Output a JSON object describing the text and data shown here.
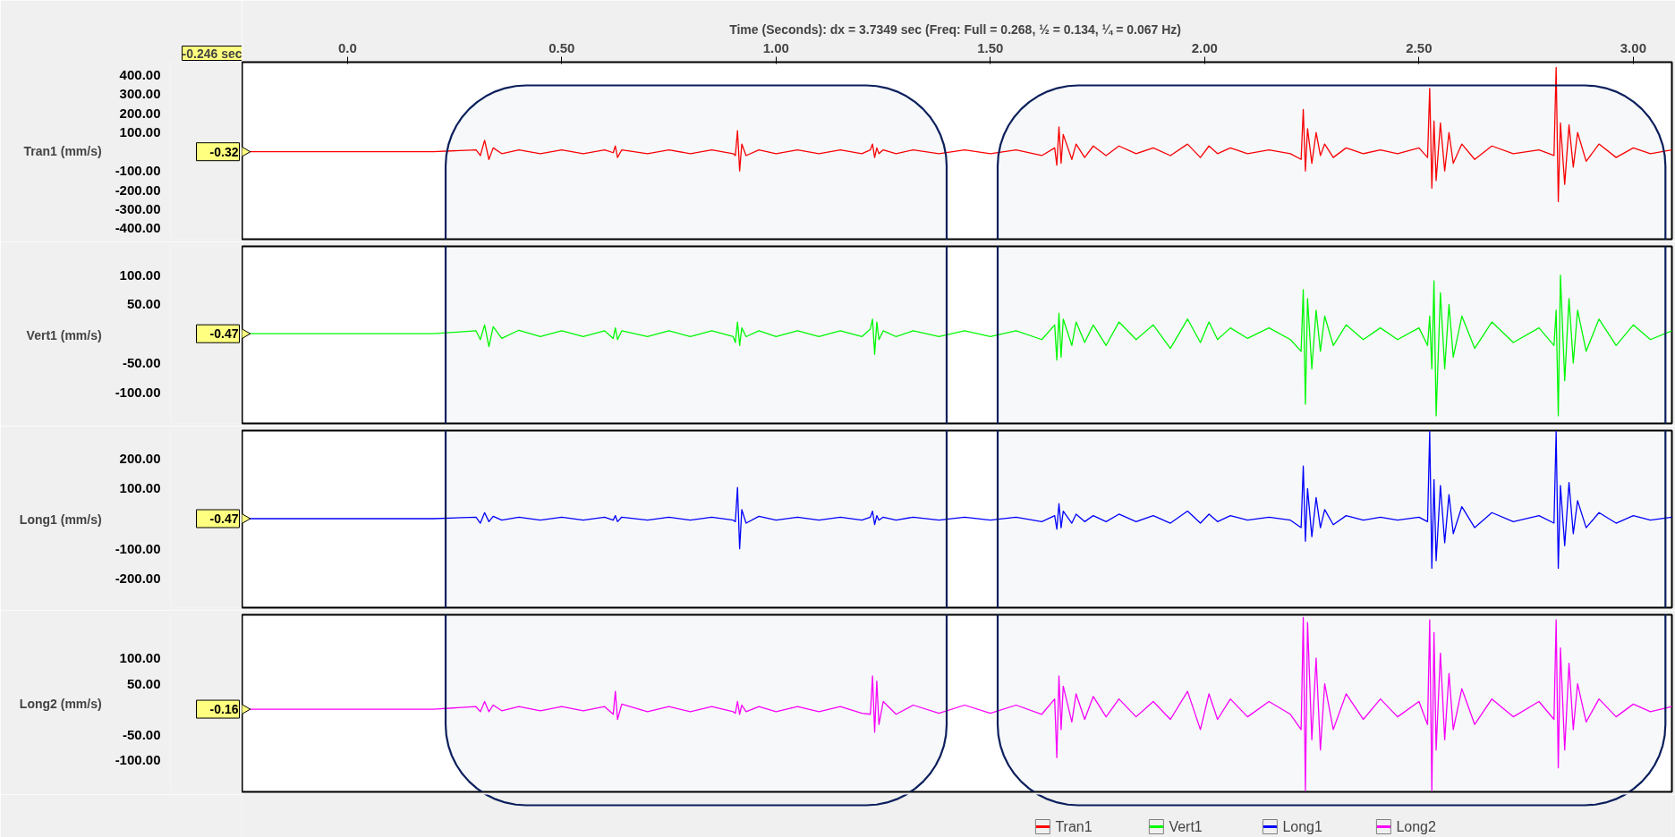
{
  "chart_data": [
    {
      "type": "line",
      "xlabel": "Time (Seconds): dx = 3.7349 sec (Freq:  Full = 0.268, ½ = 0.134, ¼ = 0.067 Hz)",
      "ylabel": "Tran1 (mm/s)",
      "xlim": [
        -0.246,
        3.09
      ],
      "xticks": [
        {
          "value": 0,
          "label": "0.0"
        },
        {
          "value": 0.5,
          "label": "0.50"
        },
        {
          "value": 1,
          "label": "1.00"
        },
        {
          "value": 1.5,
          "label": "1.50"
        },
        {
          "value": 2,
          "label": "2.00"
        },
        {
          "value": 2.5,
          "label": "2.50"
        },
        {
          "value": 3,
          "label": "3.00"
        }
      ],
      "ylim": [
        -456,
        467
      ],
      "yticks": [
        {
          "value": 400,
          "label": "400.00"
        },
        {
          "value": 300,
          "label": "300.00"
        },
        {
          "value": 200,
          "label": "200.00"
        },
        {
          "value": 100,
          "label": "100.00"
        },
        {
          "value": -100,
          "label": "-100.00"
        },
        {
          "value": -200,
          "label": "-200.00"
        },
        {
          "value": -300,
          "label": "-300.00"
        },
        {
          "value": -400,
          "label": "-400.00"
        }
      ],
      "annotations": [
        "-0.246 sec",
        "-0.32"
      ],
      "bands": [
        {
          "axis": "x",
          "from": 0.229,
          "to": 1.398,
          "color": "#0b1f5c"
        },
        {
          "axis": "x",
          "from": 1.517,
          "to": 3.075,
          "color": "#0b1f5c"
        }
      ],
      "legend": "bottom",
      "grid": false,
      "x": [
        -0.246,
        0.0,
        0.2,
        0.3,
        0.31,
        0.32,
        0.33,
        0.34,
        0.36,
        0.4,
        0.45,
        0.5,
        0.55,
        0.6,
        0.62,
        0.625,
        0.63,
        0.64,
        0.7,
        0.75,
        0.8,
        0.85,
        0.9,
        0.905,
        0.91,
        0.915,
        0.92,
        0.93,
        0.96,
        1.0,
        1.05,
        1.1,
        1.15,
        1.2,
        1.22,
        1.225,
        1.23,
        1.235,
        1.24,
        1.25,
        1.28,
        1.32,
        1.38,
        1.44,
        1.5,
        1.56,
        1.62,
        1.65,
        1.655,
        1.66,
        1.665,
        1.67,
        1.69,
        1.7,
        1.72,
        1.74,
        1.77,
        1.8,
        1.84,
        1.88,
        1.92,
        1.96,
        1.99,
        2.01,
        2.03,
        2.06,
        2.1,
        2.15,
        2.2,
        2.225,
        2.23,
        2.235,
        2.24,
        2.25,
        2.26,
        2.27,
        2.28,
        2.3,
        2.33,
        2.37,
        2.41,
        2.45,
        2.5,
        2.52,
        2.525,
        2.53,
        2.535,
        2.54,
        2.55,
        2.56,
        2.57,
        2.58,
        2.6,
        2.63,
        2.67,
        2.72,
        2.78,
        2.815,
        2.82,
        2.825,
        2.83,
        2.84,
        2.85,
        2.86,
        2.87,
        2.89,
        2.92,
        2.96,
        3.0,
        3.04,
        3.09
      ],
      "series": [
        {
          "name": "Tran1",
          "color": "#ff0000",
          "values": [
            0,
            0,
            0,
            10,
            -20,
            60,
            -40,
            20,
            -10,
            10,
            -10,
            10,
            -10,
            10,
            -5,
            30,
            -30,
            10,
            -10,
            10,
            -10,
            10,
            -10,
            -20,
            110,
            -100,
            40,
            -20,
            10,
            -10,
            10,
            -10,
            10,
            -10,
            10,
            40,
            -30,
            20,
            -10,
            10,
            -10,
            10,
            -10,
            10,
            -10,
            10,
            -20,
            20,
            -70,
            130,
            -60,
            90,
            -40,
            40,
            -30,
            30,
            -20,
            30,
            -10,
            20,
            -20,
            40,
            -30,
            30,
            -10,
            20,
            -10,
            10,
            -10,
            -40,
            220,
            -100,
            120,
            -60,
            100,
            -20,
            40,
            -30,
            20,
            -10,
            10,
            -10,
            20,
            -30,
            330,
            -190,
            160,
            -150,
            150,
            -100,
            100,
            -60,
            40,
            -40,
            30,
            -10,
            10,
            -20,
            440,
            -260,
            150,
            -170,
            140,
            -80,
            100,
            -50,
            40,
            -30,
            20,
            -10,
            10
          ]
        }
      ]
    },
    {
      "type": "line",
      "ylabel": "Vert1 (mm/s)",
      "xlim": [
        -0.246,
        3.09
      ],
      "tick_labels": "y",
      "ylim": [
        -153,
        149
      ],
      "yticks": [
        {
          "value": 100,
          "label": "100.00"
        },
        {
          "value": 50,
          "label": "50.00"
        },
        {
          "value": -50,
          "label": "-50.00"
        },
        {
          "value": -100,
          "label": "-100.00"
        }
      ],
      "annotations": [
        "-0.47"
      ],
      "bands": [
        {
          "axis": "x",
          "from": 0.229,
          "to": 1.398,
          "color": "#0b1f5c"
        },
        {
          "axis": "x",
          "from": 1.517,
          "to": 3.075,
          "color": "#0b1f5c"
        }
      ],
      "legend": "bottom",
      "grid": false,
      "x": [
        -0.246,
        0.0,
        0.2,
        0.3,
        0.31,
        0.32,
        0.33,
        0.34,
        0.36,
        0.4,
        0.45,
        0.5,
        0.55,
        0.6,
        0.62,
        0.625,
        0.63,
        0.64,
        0.7,
        0.75,
        0.8,
        0.85,
        0.9,
        0.905,
        0.91,
        0.915,
        0.92,
        0.93,
        0.96,
        1.0,
        1.05,
        1.1,
        1.15,
        1.2,
        1.22,
        1.225,
        1.23,
        1.235,
        1.24,
        1.25,
        1.28,
        1.32,
        1.38,
        1.44,
        1.5,
        1.56,
        1.62,
        1.65,
        1.655,
        1.66,
        1.665,
        1.67,
        1.69,
        1.7,
        1.72,
        1.74,
        1.77,
        1.8,
        1.84,
        1.88,
        1.92,
        1.96,
        1.99,
        2.01,
        2.03,
        2.06,
        2.1,
        2.15,
        2.2,
        2.225,
        2.23,
        2.235,
        2.24,
        2.25,
        2.26,
        2.27,
        2.28,
        2.3,
        2.33,
        2.37,
        2.41,
        2.45,
        2.5,
        2.52,
        2.525,
        2.53,
        2.535,
        2.54,
        2.55,
        2.56,
        2.57,
        2.58,
        2.6,
        2.63,
        2.67,
        2.72,
        2.78,
        2.815,
        2.82,
        2.825,
        2.83,
        2.84,
        2.85,
        2.86,
        2.87,
        2.89,
        2.92,
        2.96,
        3.0,
        3.04,
        3.09
      ],
      "series": [
        {
          "name": "Vert1",
          "color": "#00ff00",
          "values": [
            0,
            0,
            0,
            5,
            -10,
            15,
            -22,
            12,
            -8,
            6,
            -5,
            5,
            -5,
            5,
            -8,
            10,
            -10,
            5,
            -5,
            5,
            -5,
            5,
            -5,
            -15,
            20,
            -20,
            10,
            -5,
            5,
            -5,
            5,
            -5,
            5,
            -5,
            8,
            25,
            -35,
            20,
            -10,
            5,
            -5,
            5,
            -5,
            5,
            -5,
            5,
            -10,
            15,
            -45,
            35,
            -40,
            25,
            -20,
            20,
            -15,
            15,
            -20,
            20,
            -10,
            15,
            -25,
            25,
            -15,
            20,
            -10,
            10,
            -8,
            10,
            -10,
            -30,
            75,
            -120,
            60,
            -60,
            40,
            -30,
            30,
            -20,
            15,
            -10,
            10,
            -10,
            10,
            -20,
            30,
            -60,
            90,
            -140,
            70,
            -60,
            50,
            -40,
            30,
            -25,
            20,
            -15,
            10,
            -20,
            40,
            -140,
            100,
            -80,
            60,
            -50,
            40,
            -30,
            25,
            -20,
            15,
            -10,
            5
          ]
        }
      ]
    },
    {
      "type": "line",
      "ylabel": "Long1 (mm/s)",
      "xlim": [
        -0.246,
        3.09
      ],
      "tick_labels": "y",
      "ylim": [
        -296,
        293
      ],
      "yticks": [
        {
          "value": 200,
          "label": "200.00"
        },
        {
          "value": 100,
          "label": "100.00"
        },
        {
          "value": -100,
          "label": "-100.00"
        },
        {
          "value": -200,
          "label": "-200.00"
        }
      ],
      "annotations": [
        "-0.47"
      ],
      "bands": [
        {
          "axis": "x",
          "from": 0.229,
          "to": 1.398,
          "color": "#0b1f5c"
        },
        {
          "axis": "x",
          "from": 1.517,
          "to": 3.075,
          "color": "#0b1f5c"
        }
      ],
      "legend": "bottom",
      "grid": false,
      "x": [
        -0.246,
        0.0,
        0.2,
        0.3,
        0.31,
        0.32,
        0.33,
        0.34,
        0.36,
        0.4,
        0.45,
        0.5,
        0.55,
        0.6,
        0.62,
        0.625,
        0.63,
        0.64,
        0.7,
        0.75,
        0.8,
        0.85,
        0.9,
        0.905,
        0.91,
        0.915,
        0.92,
        0.93,
        0.96,
        1.0,
        1.05,
        1.1,
        1.15,
        1.2,
        1.22,
        1.225,
        1.23,
        1.235,
        1.24,
        1.25,
        1.28,
        1.32,
        1.38,
        1.44,
        1.5,
        1.56,
        1.62,
        1.65,
        1.655,
        1.66,
        1.665,
        1.67,
        1.69,
        1.7,
        1.72,
        1.74,
        1.77,
        1.8,
        1.84,
        1.88,
        1.92,
        1.96,
        1.99,
        2.01,
        2.03,
        2.06,
        2.1,
        2.15,
        2.2,
        2.225,
        2.23,
        2.235,
        2.24,
        2.25,
        2.26,
        2.27,
        2.28,
        2.3,
        2.33,
        2.37,
        2.41,
        2.45,
        2.5,
        2.52,
        2.525,
        2.53,
        2.535,
        2.54,
        2.55,
        2.56,
        2.57,
        2.58,
        2.6,
        2.63,
        2.67,
        2.72,
        2.78,
        2.815,
        2.82,
        2.825,
        2.83,
        2.84,
        2.85,
        2.86,
        2.87,
        2.89,
        2.92,
        2.96,
        3.0,
        3.04,
        3.09
      ],
      "series": [
        {
          "name": "Long1",
          "color": "#0000ff",
          "values": [
            0,
            0,
            0,
            5,
            -15,
            20,
            -10,
            8,
            -5,
            5,
            -5,
            5,
            -5,
            5,
            -5,
            10,
            -10,
            5,
            -5,
            5,
            -5,
            5,
            -5,
            -10,
            104,
            -100,
            30,
            -15,
            8,
            -5,
            5,
            -5,
            5,
            -5,
            5,
            25,
            -20,
            10,
            -5,
            5,
            -5,
            5,
            -5,
            5,
            -5,
            5,
            -10,
            10,
            -35,
            50,
            -30,
            25,
            -15,
            15,
            -10,
            10,
            -10,
            15,
            -10,
            10,
            -15,
            25,
            -15,
            15,
            -10,
            10,
            -5,
            5,
            -5,
            -30,
            175,
            -75,
            100,
            -60,
            70,
            -30,
            30,
            -20,
            10,
            -5,
            5,
            -5,
            5,
            -10,
            290,
            -165,
            130,
            -140,
            110,
            -80,
            80,
            -50,
            40,
            -30,
            20,
            -10,
            10,
            -15,
            290,
            -165,
            110,
            -90,
            120,
            -50,
            60,
            -30,
            20,
            -15,
            10,
            -5,
            5
          ]
        }
      ]
    },
    {
      "type": "line",
      "ylabel": "Long2 (mm/s)",
      "xlim": [
        -0.246,
        3.09
      ],
      "tick_labels": "y",
      "ylim": [
        -162,
        185
      ],
      "yticks": [
        {
          "value": 100,
          "label": "100.00"
        },
        {
          "value": 50,
          "label": "50.00"
        },
        {
          "value": -50,
          "label": "-50.00"
        },
        {
          "value": -100,
          "label": "-100.00"
        }
      ],
      "annotations": [
        "-0.16"
      ],
      "bands": [
        {
          "axis": "x",
          "from": 0.229,
          "to": 1.398,
          "color": "#0b1f5c"
        },
        {
          "axis": "x",
          "from": 1.517,
          "to": 3.075,
          "color": "#0b1f5c"
        }
      ],
      "legend": "bottom",
      "grid": false,
      "x": [
        -0.246,
        0.0,
        0.2,
        0.3,
        0.31,
        0.32,
        0.33,
        0.34,
        0.36,
        0.4,
        0.45,
        0.5,
        0.55,
        0.6,
        0.62,
        0.625,
        0.63,
        0.64,
        0.7,
        0.75,
        0.8,
        0.85,
        0.9,
        0.905,
        0.91,
        0.915,
        0.92,
        0.93,
        0.96,
        1.0,
        1.05,
        1.1,
        1.15,
        1.2,
        1.22,
        1.225,
        1.23,
        1.235,
        1.24,
        1.25,
        1.28,
        1.32,
        1.38,
        1.44,
        1.5,
        1.56,
        1.62,
        1.65,
        1.655,
        1.66,
        1.665,
        1.67,
        1.69,
        1.7,
        1.72,
        1.74,
        1.77,
        1.8,
        1.84,
        1.88,
        1.92,
        1.96,
        1.99,
        2.01,
        2.03,
        2.06,
        2.1,
        2.15,
        2.2,
        2.225,
        2.23,
        2.235,
        2.24,
        2.25,
        2.26,
        2.27,
        2.28,
        2.3,
        2.33,
        2.37,
        2.41,
        2.45,
        2.5,
        2.52,
        2.525,
        2.53,
        2.535,
        2.54,
        2.55,
        2.56,
        2.57,
        2.58,
        2.6,
        2.63,
        2.67,
        2.72,
        2.78,
        2.815,
        2.82,
        2.825,
        2.83,
        2.84,
        2.85,
        2.86,
        2.87,
        2.89,
        2.92,
        2.96,
        3.0,
        3.04,
        3.09
      ],
      "series": [
        {
          "name": "Long2",
          "color": "#ff00ff",
          "values": [
            0,
            0,
            0,
            5,
            -5,
            15,
            -5,
            8,
            -3,
            5,
            -3,
            5,
            -3,
            5,
            -10,
            35,
            -20,
            10,
            -5,
            5,
            -5,
            5,
            -5,
            -8,
            15,
            -10,
            8,
            -5,
            5,
            -5,
            5,
            -5,
            5,
            -8,
            -10,
            65,
            -45,
            55,
            -30,
            15,
            -10,
            8,
            -8,
            8,
            -8,
            8,
            -10,
            20,
            -95,
            65,
            -40,
            45,
            -25,
            30,
            -20,
            25,
            -15,
            20,
            -15,
            15,
            -20,
            35,
            -40,
            30,
            -20,
            20,
            -15,
            15,
            -10,
            -40,
            180,
            -160,
            170,
            -60,
            100,
            -80,
            50,
            -40,
            30,
            -20,
            20,
            -15,
            15,
            -30,
            175,
            -160,
            150,
            -80,
            110,
            -60,
            70,
            -40,
            40,
            -30,
            20,
            -15,
            15,
            -20,
            175,
            -115,
            120,
            -80,
            90,
            -40,
            50,
            -25,
            20,
            -15,
            10,
            -5,
            5
          ]
        }
      ]
    }
  ]
}
